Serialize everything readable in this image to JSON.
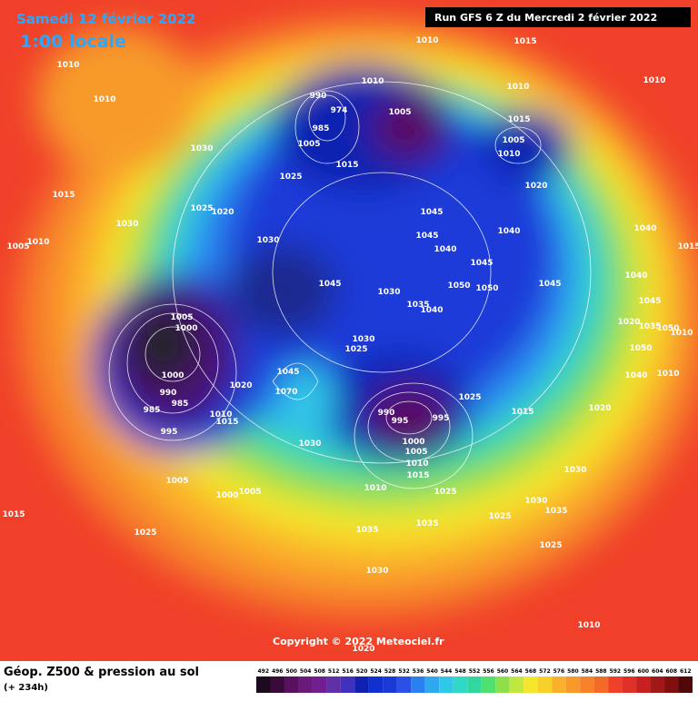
{
  "header": {
    "title": "Samedi 12 février 2022",
    "subtitle": "1:00 locale",
    "run": "Run GFS 6 Z du Mercredi 2 février 2022"
  },
  "copyright": "Copyright © 2022 Meteociel.fr",
  "footer": {
    "title": "Géop. Z500 & pression au sol",
    "lead": "(+ 234h)"
  },
  "isobar_labels": [
    "1010",
    "1010",
    "1030",
    "1015",
    "1005",
    "1010",
    "1030",
    "1025",
    "1020",
    "1025",
    "1010",
    "990",
    "974",
    "985",
    "1005",
    "1015",
    "1005",
    "1010",
    "1015",
    "1010",
    "1015",
    "1005",
    "1010",
    "1020",
    "1045",
    "1045",
    "1040",
    "1045",
    "1050",
    "1050",
    "1040",
    "1045",
    "1040",
    "1030",
    "1045",
    "1030",
    "1035",
    "1040",
    "1005",
    "1000",
    "1000",
    "990",
    "985",
    "985",
    "995",
    "1020",
    "1010",
    "1015",
    "1045",
    "1070",
    "1030",
    "1025",
    "990",
    "995",
    "995",
    "1000",
    "1005",
    "1010",
    "1015",
    "1025",
    "1025",
    "1030",
    "1005",
    "1000",
    "1005",
    "1015",
    "1025",
    "1035",
    "1035",
    "1030",
    "1010",
    "1020",
    "1030",
    "1025",
    "1035",
    "1030",
    "1025",
    "1015",
    "1020",
    "1040",
    "1010",
    "1045",
    "1050",
    "1050",
    "1010",
    "1015",
    "1040",
    "1010",
    "1010",
    "1020",
    "1035"
  ],
  "scale_labels": [
    "492",
    "496",
    "500",
    "504",
    "508",
    "512",
    "516",
    "520",
    "524",
    "528",
    "532",
    "536",
    "540",
    "544",
    "548",
    "552",
    "556",
    "560",
    "564",
    "568",
    "572",
    "576",
    "580",
    "584",
    "588",
    "592",
    "596",
    "600",
    "604",
    "608",
    "612"
  ]
}
